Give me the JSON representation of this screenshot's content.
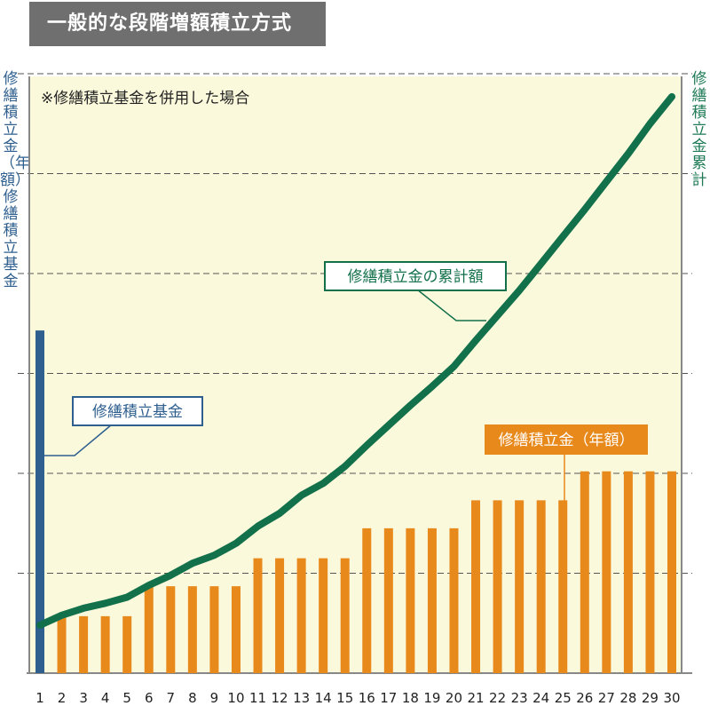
{
  "header": {
    "title": "一般的な段階増額積立方式"
  },
  "axes": {
    "left_label": "修繕積立金（年額）・修繕積立基金",
    "right_label": "修繕積立金累計"
  },
  "chart_data": {
    "type": "bar",
    "note": "※修繕積立基金を併用した場合",
    "x": [
      "1",
      "2",
      "3",
      "4",
      "5",
      "6",
      "7",
      "8",
      "9",
      "10",
      "11",
      "12",
      "13",
      "14",
      "15",
      "16",
      "17",
      "18",
      "19",
      "20",
      "21",
      "22",
      "23",
      "24",
      "25",
      "26",
      "27",
      "28",
      "29",
      "30"
    ],
    "grid": true,
    "ylim": [
      0,
      6
    ],
    "series": [
      {
        "name": "修繕積立基金",
        "kind": "bar",
        "color": "#2e5f8f",
        "values": [
          3.43,
          0,
          0,
          0,
          0,
          0,
          0,
          0,
          0,
          0,
          0,
          0,
          0,
          0,
          0,
          0,
          0,
          0,
          0,
          0,
          0,
          0,
          0,
          0,
          0,
          0,
          0,
          0,
          0,
          0
        ]
      },
      {
        "name": "修繕積立金（年額）",
        "kind": "bar",
        "color": "#e8891c",
        "values": [
          0,
          0.57,
          0.57,
          0.57,
          0.57,
          0.87,
          0.87,
          0.87,
          0.87,
          0.87,
          1.15,
          1.15,
          1.15,
          1.15,
          1.15,
          1.45,
          1.45,
          1.45,
          1.45,
          1.45,
          1.73,
          1.73,
          1.73,
          1.73,
          1.73,
          2.02,
          2.02,
          2.02,
          2.02,
          2.02
        ]
      },
      {
        "name": "修繕積立金の累計額",
        "kind": "line",
        "color": "#12704a",
        "values": [
          0.48,
          0.58,
          0.65,
          0.7,
          0.76,
          0.88,
          0.98,
          1.1,
          1.18,
          1.3,
          1.47,
          1.6,
          1.78,
          1.9,
          2.07,
          2.28,
          2.48,
          2.68,
          2.87,
          3.07,
          3.33,
          3.58,
          3.83,
          4.1,
          4.37,
          4.64,
          4.92,
          5.2,
          5.5,
          5.77
        ]
      }
    ]
  }
}
